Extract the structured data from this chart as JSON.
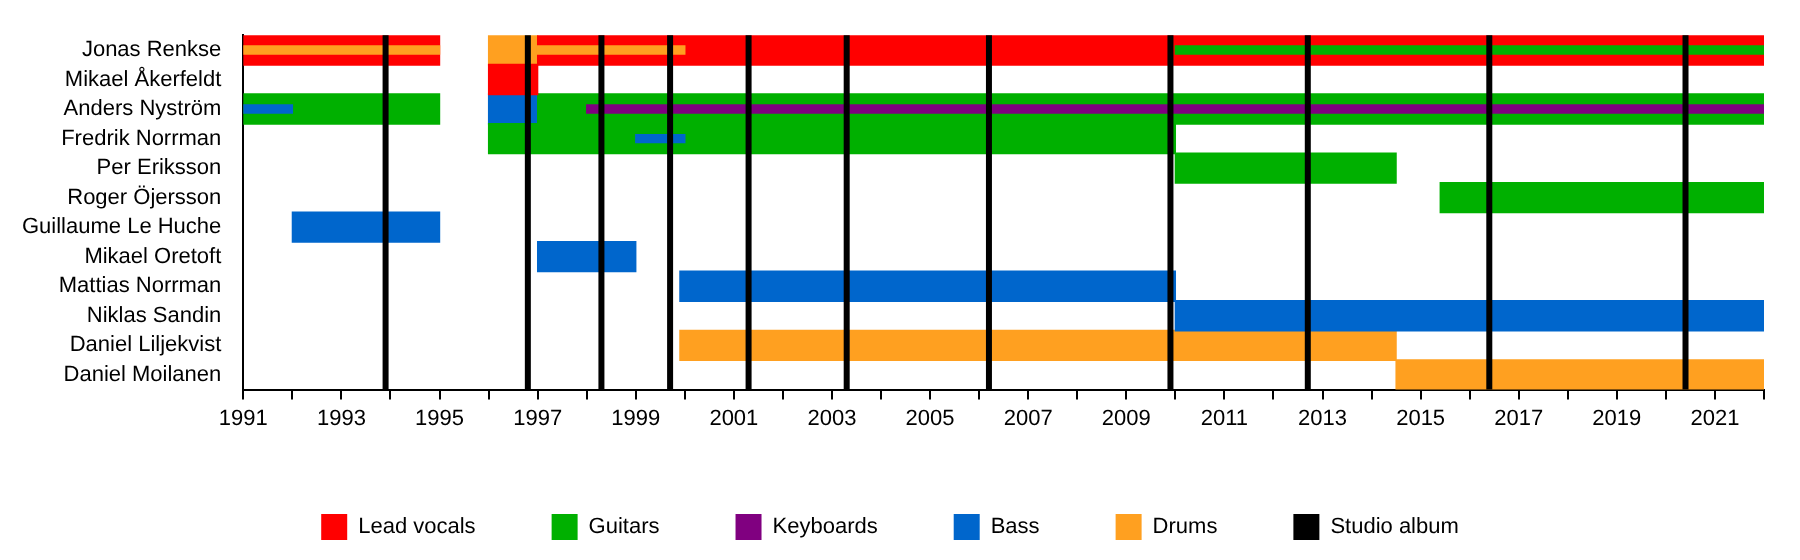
{
  "chart_data": {
    "type": "bar",
    "orientation": "horizontal",
    "categories": [
      "Jonas Renkse",
      "Mikael Åkerfeldt",
      "Anders Nyström",
      "Fredrik Norrman",
      "Per Eriksson",
      "Roger Öjersson",
      "Guillaume Le Huche",
      "Mikael Oretoft",
      "Mattias Norrman",
      "Niklas Sandin",
      "Daniel Liljekvist",
      "Daniel Moilanen"
    ],
    "series": [
      {
        "name": "Lead vocals",
        "color": "#ff0000",
        "base": [
          1991,
          1996,
          null,
          null,
          null,
          null,
          null,
          null,
          null,
          null,
          null,
          null
        ],
        "values": [
          4,
          1,
          null,
          null,
          null,
          null,
          null,
          null,
          null,
          null,
          null,
          null
        ]
      },
      {
        "color": "#ff0000",
        "base": [
          1997,
          null,
          null,
          null,
          null,
          null,
          null,
          null,
          null,
          null,
          null,
          null
        ],
        "values": [
          25,
          null,
          null,
          null,
          null,
          null,
          null,
          null,
          null,
          null,
          null,
          null
        ]
      },
      {
        "name": "Guitars",
        "color": "#00b000",
        "base": [
          null,
          null,
          1991,
          1996,
          2010,
          2015.4,
          null,
          null,
          null,
          null,
          null,
          null
        ],
        "values": [
          null,
          null,
          4,
          14,
          4.5,
          6.6,
          null,
          null,
          null,
          null,
          null,
          null
        ]
      },
      {
        "color": "#00b000",
        "base": [
          null,
          null,
          1997,
          null,
          null,
          null,
          null,
          null,
          null,
          null,
          null,
          null
        ],
        "values": [
          null,
          null,
          25,
          null,
          null,
          null,
          null,
          null,
          null,
          null,
          null,
          null
        ]
      },
      {
        "name": "Keyboards",
        "color": "#800080",
        "base": [
          null,
          null,
          1998,
          null,
          null,
          null,
          null,
          null,
          null,
          null,
          null,
          null
        ],
        "values": [
          null,
          null,
          24,
          null,
          null,
          null,
          null,
          null,
          null,
          null,
          null,
          null
        ]
      },
      {
        "name": "Bass",
        "color": "#0066cc",
        "base": [
          null,
          null,
          1996,
          null,
          null,
          null,
          1992,
          1997,
          1999.9,
          2010,
          null,
          null
        ],
        "values": [
          null,
          null,
          1,
          null,
          null,
          null,
          3,
          2,
          10.1,
          12,
          null,
          null
        ]
      },
      {
        "name": "Drums",
        "color": "#ffa020",
        "base": [
          1996,
          null,
          null,
          null,
          null,
          null,
          null,
          null,
          null,
          null,
          1999.9,
          2014.5
        ],
        "values": [
          1,
          null,
          null,
          null,
          null,
          null,
          null,
          null,
          null,
          null,
          14.6,
          7.5
        ]
      },
      {
        "color": "#ffa020",
        "base": [
          1991,
          null,
          null,
          null,
          null,
          null,
          null,
          null,
          null,
          null,
          null,
          null
        ],
        "values": [
          4,
          null,
          null,
          null,
          null,
          null,
          null,
          null,
          null,
          null,
          null,
          null
        ]
      },
      {
        "color": "#ffa020",
        "base": [
          1997,
          null,
          null,
          null,
          null,
          null,
          null,
          null,
          null,
          null,
          null,
          null
        ],
        "values": [
          3,
          null,
          null,
          null,
          null,
          null,
          null,
          null,
          null,
          null,
          null,
          null
        ]
      },
      {
        "color": "#00b000",
        "base": [
          2010,
          null,
          null,
          null,
          null,
          null,
          null,
          null,
          null,
          null,
          null,
          null
        ],
        "values": [
          12,
          null,
          null,
          null,
          null,
          null,
          null,
          null,
          null,
          null,
          null,
          null
        ]
      },
      {
        "color": "#0066cc",
        "base": [
          null,
          null,
          1991,
          1999,
          null,
          null,
          null,
          null,
          null,
          null,
          null,
          null
        ],
        "values": [
          null,
          null,
          1,
          1,
          null,
          null,
          null,
          null,
          null,
          null,
          null,
          null
        ]
      }
    ],
    "xlim": [
      1991,
      2022
    ],
    "xticks": [
      1991,
      {
        "value": 1992,
        "label": null
      },
      1993,
      {
        "value": 1994,
        "label": null
      },
      1995,
      {
        "value": 1996,
        "label": null
      },
      1997,
      {
        "value": 1998,
        "label": null
      },
      1999,
      {
        "value": 2000,
        "label": null
      },
      2001,
      {
        "value": 2002,
        "label": null
      },
      2003,
      {
        "value": 2004,
        "label": null
      },
      2005,
      {
        "value": 2006,
        "label": null
      },
      2007,
      {
        "value": 2008,
        "label": null
      },
      2009,
      {
        "value": 2010,
        "label": null
      },
      2011,
      {
        "value": 2012,
        "label": null
      },
      2013,
      {
        "value": 2014,
        "label": null
      },
      2015,
      {
        "value": 2016,
        "label": null
      },
      2017,
      {
        "value": 2018,
        "label": null
      },
      2019,
      {
        "value": 2020,
        "label": null
      },
      2021,
      {
        "value": 2022,
        "label": null
      }
    ],
    "ref_lines": [
      {
        "axis": "x",
        "value": 1993.9,
        "label": "Studio album",
        "color": "#000000"
      },
      {
        "axis": "x",
        "value": 1996.8,
        "color": "#000000"
      },
      {
        "axis": "x",
        "value": 1998.3,
        "color": "#000000"
      },
      {
        "axis": "x",
        "value": 1999.7,
        "color": "#000000"
      },
      {
        "axis": "x",
        "value": 2001.3,
        "color": "#000000"
      },
      {
        "axis": "x",
        "value": 2003.3,
        "color": "#000000"
      },
      {
        "axis": "x",
        "value": 2006.2,
        "color": "#000000"
      },
      {
        "axis": "x",
        "value": 2009.9,
        "color": "#000000"
      },
      {
        "axis": "x",
        "value": 2012.7,
        "color": "#000000"
      },
      {
        "axis": "x",
        "value": 2016.4,
        "color": "#000000"
      },
      {
        "axis": "x",
        "value": 2020.4,
        "color": "#000000"
      }
    ],
    "grid": false,
    "legend": "bottom"
  }
}
